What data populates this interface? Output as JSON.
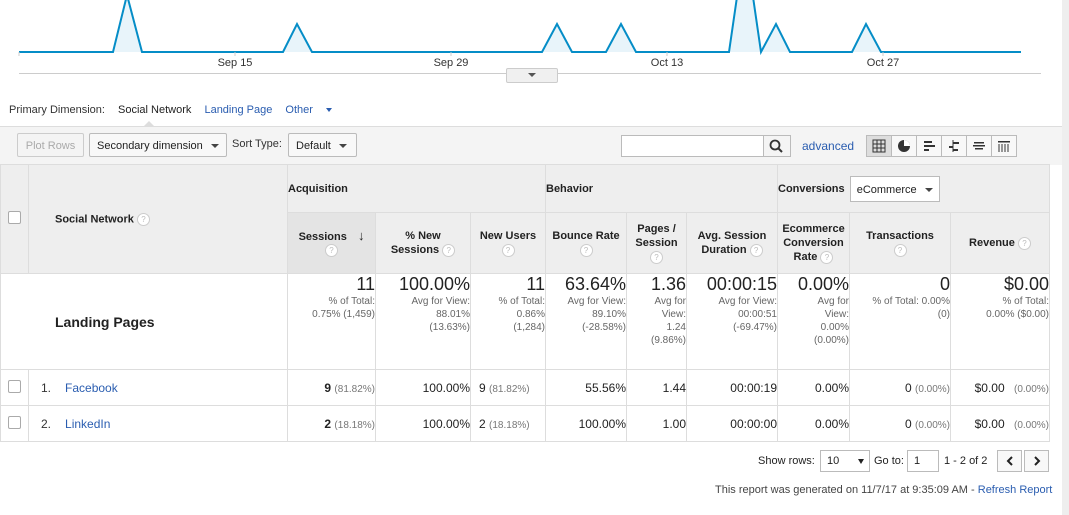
{
  "chart": {
    "x_labels": [
      "Sep 15",
      "Sep 29",
      "Oct 13",
      "Oct 27"
    ]
  },
  "primary_dimension": {
    "label": "Primary Dimension:",
    "active": "Social Network",
    "landing_page": "Landing Page",
    "other": "Other"
  },
  "toolbar": {
    "plot_rows": "Plot Rows",
    "secondary_dimension": "Secondary dimension",
    "sort_type_label": "Sort Type:",
    "sort_type_value": "Default",
    "search_value": "",
    "advanced": "advanced"
  },
  "table": {
    "dimension_header": "Social Network",
    "groups": {
      "acquisition": "Acquisition",
      "behavior": "Behavior",
      "conversions": "Conversions",
      "conversions_select": "eCommerce"
    },
    "metrics": {
      "sessions": "Sessions",
      "new_sessions_1": "% New",
      "new_sessions_2": "Sessions",
      "new_users": "New Users",
      "bounce_rate": "Bounce Rate",
      "pages_1": "Pages /",
      "pages_2": "Session",
      "duration_1": "Avg. Session",
      "duration_2": "Duration",
      "ecom_1": "Ecommerce",
      "ecom_2": "Conversion",
      "ecom_3": "Rate",
      "transactions": "Transactions",
      "revenue": "Revenue"
    },
    "totals": {
      "label": "Landing Pages",
      "sessions": "11",
      "sessions_sub1": "% of Total:",
      "sessions_sub2": "0.75% (1,459)",
      "new_sessions": "100.00%",
      "new_sessions_sub1": "Avg for View:",
      "new_sessions_sub2": "88.01%",
      "new_sessions_sub3": "(13.63%)",
      "new_users": "11",
      "new_users_sub1": "% of Total:",
      "new_users_sub2": "0.86%",
      "new_users_sub3": "(1,284)",
      "bounce_rate": "63.64%",
      "bounce_rate_sub1": "Avg for View:",
      "bounce_rate_sub2": "89.10%",
      "bounce_rate_sub3": "(-28.58%)",
      "pages": "1.36",
      "pages_sub1": "Avg for",
      "pages_sub2": "View:",
      "pages_sub3": "1.24",
      "pages_sub4": "(9.86%)",
      "duration": "00:00:15",
      "duration_sub1": "Avg for View:",
      "duration_sub2": "00:00:51",
      "duration_sub3": "(-69.47%)",
      "ecom_rate": "0.00%",
      "ecom_rate_sub1": "Avg for",
      "ecom_rate_sub2": "View:",
      "ecom_rate_sub3": "0.00%",
      "ecom_rate_sub4": "(0.00%)",
      "transactions": "0",
      "transactions_sub1": "% of Total: 0.00%",
      "transactions_sub2": "(0)",
      "revenue": "$0.00",
      "revenue_sub1": "% of Total:",
      "revenue_sub2": "0.00% ($0.00)"
    },
    "rows": [
      {
        "index": "1.",
        "name": "Facebook",
        "sessions": "9",
        "sessions_pct": "(81.82%)",
        "new_sessions": "100.00%",
        "new_users": "9",
        "new_users_pct": "(81.82%)",
        "bounce_rate": "55.56%",
        "pages": "1.44",
        "duration": "00:00:19",
        "ecom_rate": "0.00%",
        "transactions": "0",
        "transactions_pct": "(0.00%)",
        "revenue": "$0.00",
        "revenue_pct": "(0.00%)"
      },
      {
        "index": "2.",
        "name": "LinkedIn",
        "sessions": "2",
        "sessions_pct": "(18.18%)",
        "new_sessions": "100.00%",
        "new_users": "2",
        "new_users_pct": "(18.18%)",
        "bounce_rate": "100.00%",
        "pages": "1.00",
        "duration": "00:00:00",
        "ecom_rate": "0.00%",
        "transactions": "0",
        "transactions_pct": "(0.00%)",
        "revenue": "$0.00",
        "revenue_pct": "(0.00%)"
      }
    ]
  },
  "footer": {
    "show_rows_label": "Show rows:",
    "show_rows_value": "10",
    "goto_label": "Go to:",
    "goto_value": "1",
    "page_range": "1 - 2 of 2",
    "generated_text": "This report was generated on 11/7/17 at 9:35:09 AM -",
    "refresh": "Refresh Report"
  },
  "colors": {
    "line": "#058dc7",
    "link": "#2a5db0"
  }
}
